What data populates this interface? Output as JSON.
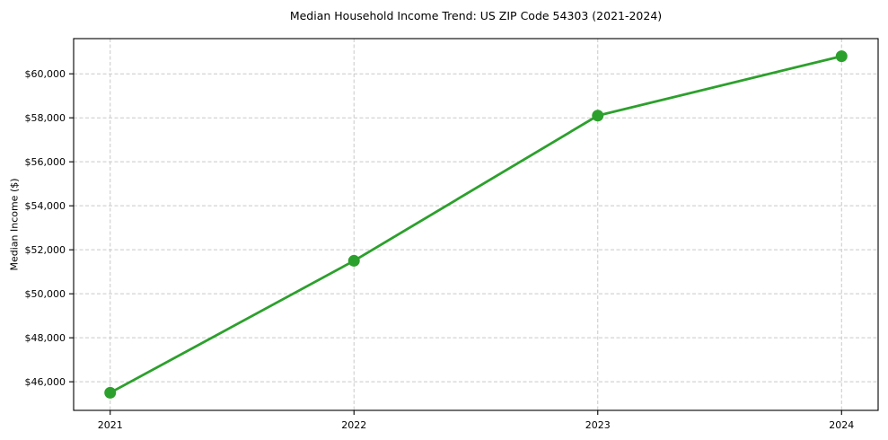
{
  "chart_data": {
    "type": "line",
    "title": "Median Household Income Trend: US ZIP Code 54303 (2021-2024)",
    "xlabel": "",
    "ylabel": "Median Income ($)",
    "x": [
      2021,
      2022,
      2023,
      2024
    ],
    "x_tick_labels": [
      "2021",
      "2022",
      "2023",
      "2024"
    ],
    "series": [
      {
        "name": "Median Household Income",
        "values": [
          45500,
          51500,
          58100,
          60800
        ]
      }
    ],
    "y_ticks": [
      46000,
      48000,
      50000,
      52000,
      54000,
      56000,
      58000,
      60000
    ],
    "y_tick_labels": [
      "$46,000",
      "$48,000",
      "$50,000",
      "$52,000",
      "$54,000",
      "$56,000",
      "$58,000",
      "$60,000"
    ],
    "xlim": [
      2020.85,
      2024.15
    ],
    "ylim": [
      44700,
      61600
    ],
    "grid": true,
    "grid_style": "dashed",
    "legend": "none",
    "line_color": "#2ca02c",
    "marker": "circle",
    "grid_color": "#c9c9c9",
    "axis_color": "#000000"
  }
}
